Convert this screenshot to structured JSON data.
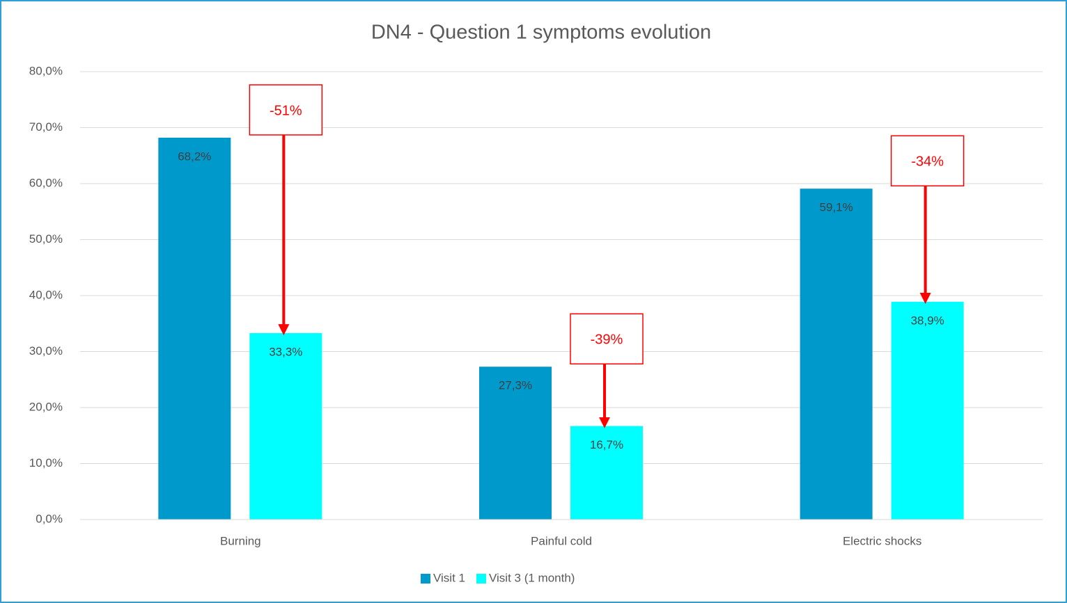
{
  "chart_data": {
    "type": "bar",
    "title": "DN4 - Question 1 symptoms evolution",
    "categories": [
      "Burning",
      "Painful cold",
      "Electric shocks"
    ],
    "series": [
      {
        "name": "Visit 1",
        "color": "#0099cc",
        "values": [
          68.2,
          27.3,
          59.1
        ],
        "value_labels": [
          "68,2%",
          "27,3%",
          "59,1%"
        ]
      },
      {
        "name": "Visit 3 (1 month)",
        "color": "#00ffff",
        "values": [
          33.3,
          16.7,
          38.9
        ],
        "value_labels": [
          "33,3%",
          "16,7%",
          "38,9%"
        ]
      }
    ],
    "annotations": [
      "-51%",
      "-39%",
      "-34%"
    ],
    "annotation_color": "#ff0000",
    "ylim": [
      0,
      80
    ],
    "yticks": [
      {
        "value": 0,
        "label": "0,0%"
      },
      {
        "value": 10,
        "label": "10,0%"
      },
      {
        "value": 20,
        "label": "20,0%"
      },
      {
        "value": 30,
        "label": "30,0%"
      },
      {
        "value": 40,
        "label": "40,0%"
      },
      {
        "value": 50,
        "label": "50,0%"
      },
      {
        "value": 60,
        "label": "60,0%"
      },
      {
        "value": 70,
        "label": "70,0%"
      },
      {
        "value": 80,
        "label": "80,0%"
      }
    ],
    "grid": true,
    "legend": "bottom"
  }
}
